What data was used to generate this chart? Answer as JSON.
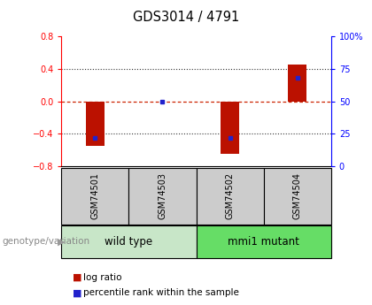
{
  "title": "GDS3014 / 4791",
  "samples": [
    "GSM74501",
    "GSM74503",
    "GSM74502",
    "GSM74504"
  ],
  "log_ratios": [
    -0.55,
    0.0,
    -0.65,
    0.45
  ],
  "percentile_ranks": [
    22,
    50,
    22,
    68
  ],
  "groups": [
    {
      "name": "wild type",
      "indices": [
        0,
        1
      ],
      "color": "#c8e6c8"
    },
    {
      "name": "mmi1 mutant",
      "indices": [
        2,
        3
      ],
      "color": "#66dd66"
    }
  ],
  "group_label": "genotype/variation",
  "ylim_left": [
    -0.8,
    0.8
  ],
  "ylim_right": [
    0,
    100
  ],
  "yticks_left": [
    -0.8,
    -0.4,
    0,
    0.4,
    0.8
  ],
  "yticks_right": [
    0,
    25,
    50,
    75,
    100
  ],
  "bar_color": "#bb1100",
  "dot_color": "#2222cc",
  "zero_line_color": "#cc2200",
  "dotted_line_color": "#333333",
  "bar_width": 0.28,
  "sample_box_color": "#cccccc",
  "legend_log_color": "#bb1100",
  "legend_pct_color": "#2222cc"
}
